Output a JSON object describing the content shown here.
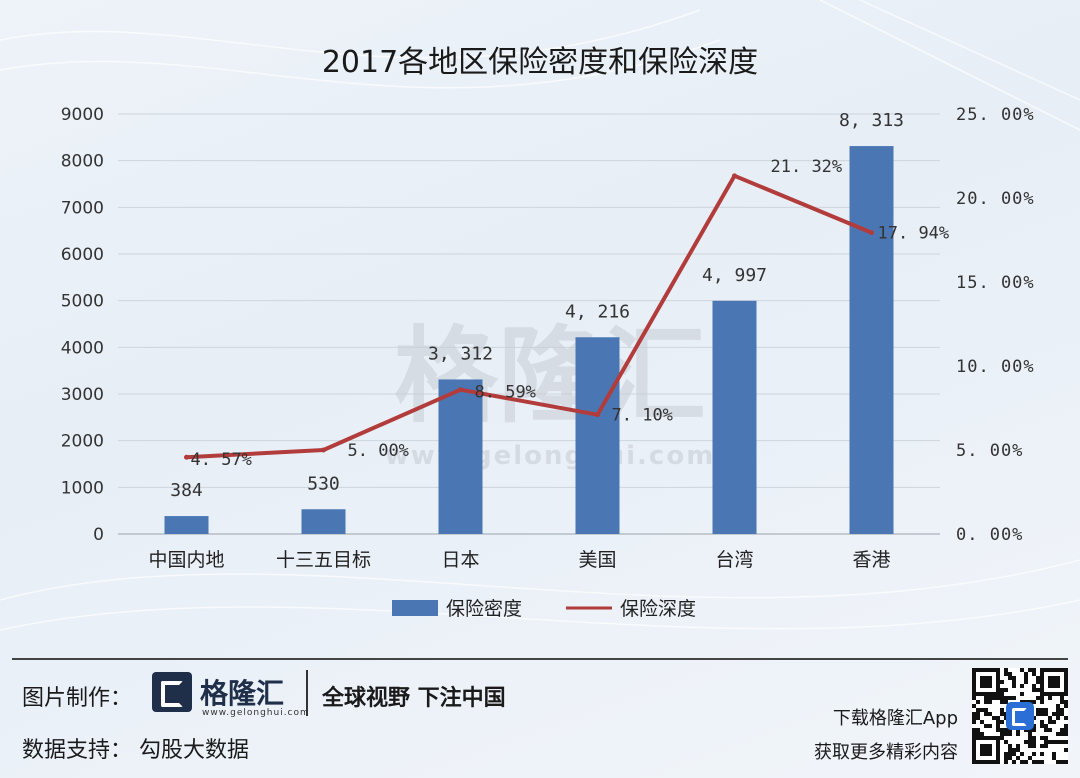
{
  "watermark": {
    "brand": "格隆汇",
    "url": "www.gelonghui.com"
  },
  "chart_data": {
    "type": "bar",
    "title": "2017各地区保险密度和保险深度",
    "categories": [
      "中国内地",
      "十三五目标",
      "日本",
      "美国",
      "台湾",
      "香港"
    ],
    "y_left": {
      "min": 0,
      "max": 9000,
      "ticks": [
        "0",
        "1000",
        "2000",
        "3000",
        "4000",
        "5000",
        "6000",
        "7000",
        "8000",
        "9000"
      ]
    },
    "y_right": {
      "min": 0,
      "max": 25,
      "ticks": [
        "0.00%",
        "5.00%",
        "10.00%",
        "15.00%",
        "20.00%",
        "25.00%"
      ]
    },
    "grid": true,
    "legend_position": "bottom",
    "series": [
      {
        "name": "保险密度",
        "type": "bar",
        "axis": "left",
        "color": "#4a77b4",
        "values": [
          384,
          530,
          3312,
          4216,
          4997,
          8313
        ],
        "labels": [
          "384",
          "530",
          "3,312",
          "4,216",
          "4,997",
          "8,313"
        ]
      },
      {
        "name": "保险深度",
        "type": "line",
        "axis": "right",
        "color": "#b23b3b",
        "values": [
          4.57,
          5.0,
          8.59,
          7.1,
          21.32,
          17.94
        ],
        "labels": [
          "4.57%",
          "5.00%",
          "8.59%",
          "7.10%",
          "21.32%",
          "17.94%"
        ]
      }
    ]
  },
  "footer": {
    "credit_label": "图片制作：",
    "brand_name": "格隆汇",
    "brand_url": "www.gelonghui.com",
    "slogan": "全球视野 下注中国",
    "data_label": "数据支持：  勾股大数据",
    "download_line1": "下载格隆汇App",
    "download_line2": "获取更多精彩内容"
  }
}
